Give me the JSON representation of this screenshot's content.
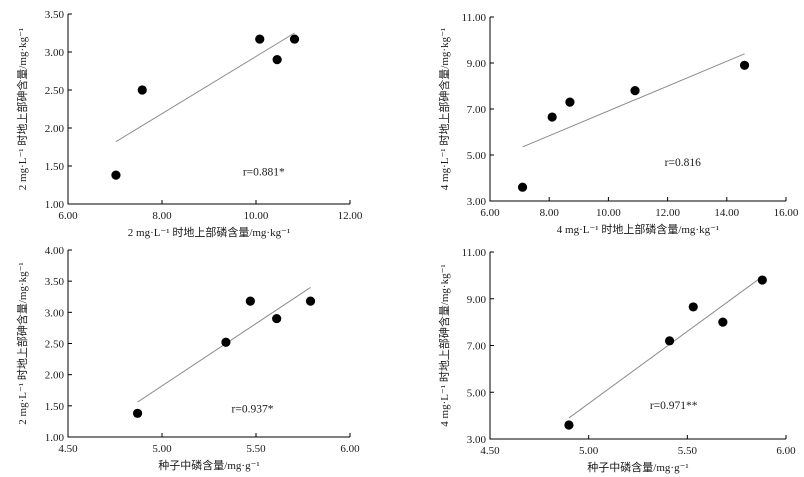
{
  "chart_data": [
    {
      "type": "scatter",
      "xlabel": "2 mg·L⁻¹ 时地上部磷含量/mg·kg⁻¹",
      "ylabel": "2 mg·L⁻¹ 时地上部砷含量/mg·kg⁻¹",
      "xlim": [
        6,
        12
      ],
      "ylim": [
        1,
        3.5
      ],
      "xticks": [
        "6.00",
        "8.00",
        "10.00",
        "12.00"
      ],
      "yticks": [
        "1.00",
        "1.50",
        "2.00",
        "2.50",
        "3.00",
        "3.50"
      ],
      "x": [
        7.02,
        7.58,
        10.08,
        10.45,
        10.82
      ],
      "y": [
        1.38,
        2.5,
        3.17,
        2.9,
        3.17
      ],
      "fit_line": {
        "x": [
          7.02,
          10.82
        ],
        "y": [
          1.82,
          3.25
        ]
      },
      "annotation": "r=0.881*"
    },
    {
      "type": "scatter",
      "xlabel": "4 mg·L⁻¹ 时地上部磷含量/mg·kg⁻¹",
      "ylabel": "4 mg·L⁻¹ 时地上部砷含量/mg·kg⁻¹",
      "xlim": [
        6,
        16
      ],
      "ylim": [
        3,
        11
      ],
      "xticks": [
        "6.00",
        "8.00",
        "10.00",
        "12.00",
        "14.00",
        "16.00"
      ],
      "yticks": [
        "3.00",
        "5.00",
        "7.00",
        "9.00",
        "11.00"
      ],
      "x": [
        7.1,
        8.1,
        8.7,
        10.9,
        14.6
      ],
      "y": [
        3.6,
        6.65,
        7.3,
        7.8,
        8.9
      ],
      "fit_line": {
        "x": [
          7.1,
          14.6
        ],
        "y": [
          5.35,
          9.4
        ]
      },
      "annotation": "r=0.816"
    },
    {
      "type": "scatter",
      "xlabel": "种子中磷含量/mg·g⁻¹",
      "ylabel": "2 mg·L⁻¹ 时地上部砷含量/mg·kg⁻¹",
      "xlim": [
        4.5,
        6
      ],
      "ylim": [
        1,
        4
      ],
      "xticks": [
        "4.50",
        "5.00",
        "5.50",
        "6.00"
      ],
      "yticks": [
        "1.00",
        "1.50",
        "2.00",
        "2.50",
        "3.00",
        "3.50",
        "4.00"
      ],
      "x": [
        4.87,
        5.34,
        5.47,
        5.61,
        5.79
      ],
      "y": [
        1.38,
        2.52,
        3.18,
        2.9,
        3.18
      ],
      "fit_line": {
        "x": [
          4.87,
          5.79
        ],
        "y": [
          1.56,
          3.4
        ]
      },
      "annotation": "r=0.937*"
    },
    {
      "type": "scatter",
      "xlabel": "种子中磷含量/mg·g⁻¹",
      "ylabel": "4 mg·L⁻¹ 时地上部砷含量/mg·kg⁻¹",
      "xlim": [
        4.5,
        6
      ],
      "ylim": [
        3,
        11
      ],
      "xticks": [
        "4.50",
        "5.00",
        "5.50",
        "6.00"
      ],
      "yticks": [
        "3.00",
        "5.00",
        "7.00",
        "9.00",
        "11.00"
      ],
      "x": [
        4.9,
        5.41,
        5.53,
        5.68,
        5.88
      ],
      "y": [
        3.6,
        7.2,
        8.65,
        8.0,
        9.8
      ],
      "fit_line": {
        "x": [
          4.9,
          5.88
        ],
        "y": [
          3.9,
          9.95
        ]
      },
      "annotation": "r=0.971**"
    }
  ]
}
